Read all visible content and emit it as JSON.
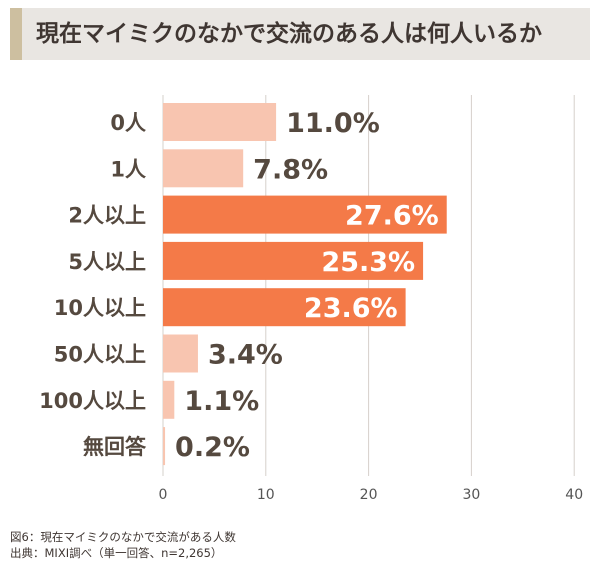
{
  "chart_data": {
    "type": "bar",
    "orientation": "horizontal",
    "title": "現在マイミクのなかで交流のある人は何人いるか",
    "categories": [
      "0人",
      "1人",
      "2人以上",
      "5人以上",
      "10人以上",
      "50人以上",
      "100人以上",
      "無回答"
    ],
    "values": [
      11.0,
      7.8,
      27.6,
      25.3,
      23.6,
      3.4,
      1.1,
      0.2
    ],
    "value_labels": [
      "11.0%",
      "7.8%",
      "27.6%",
      "25.3%",
      "23.6%",
      "3.4%",
      "1.1%",
      "0.2%"
    ],
    "highlighted": [
      false,
      false,
      true,
      true,
      true,
      false,
      false,
      false
    ],
    "xlim": [
      0,
      40
    ],
    "xticks": [
      "0",
      "10",
      "20",
      "30",
      "40"
    ],
    "grid": true,
    "colors": {
      "light_bar": "#f8c5b0",
      "highlight_bar": "#f47a48",
      "dark_label": "#55493f",
      "light_label": "#ffffff",
      "grid": "#d6d0cb"
    }
  },
  "footer": {
    "caption": "図6：現在マイミクのなかで交流がある人数",
    "source": "出典：MIXI調べ（単一回答、n=2,265）"
  }
}
